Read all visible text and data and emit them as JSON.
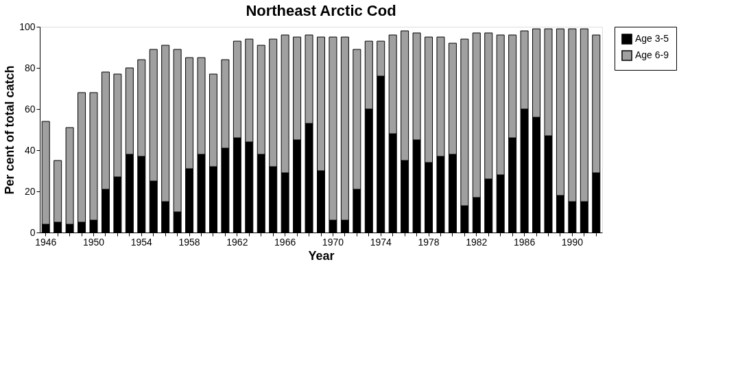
{
  "chart_data": {
    "type": "bar",
    "title": "Northeast Arctic Cod",
    "xlabel": "Year",
    "ylabel": "Per cent of total catch",
    "categories": [
      "1946",
      null,
      null,
      null,
      "1950",
      null,
      null,
      null,
      "1954",
      null,
      null,
      null,
      "1958",
      null,
      null,
      null,
      "1962",
      null,
      null,
      null,
      "1966",
      null,
      null,
      null,
      "1970",
      null,
      null,
      null,
      "1974",
      null,
      null,
      null,
      "1978",
      null,
      null,
      null,
      "1982",
      null,
      null,
      null,
      "1986",
      null,
      null,
      null,
      "1990",
      null,
      null
    ],
    "stacked": true,
    "series": [
      {
        "name": "Age 3-5",
        "color": "#000000",
        "values": [
          4,
          5,
          4,
          5,
          6,
          21,
          27,
          38,
          37,
          25,
          15,
          10,
          31,
          38,
          32,
          41,
          46,
          44,
          38,
          32,
          29,
          45,
          53,
          30,
          6,
          6,
          21,
          60,
          76,
          48,
          35,
          45,
          34,
          37,
          38,
          13,
          17,
          26,
          28,
          46,
          60,
          56,
          47,
          18,
          15,
          15,
          29
        ]
      },
      {
        "name": "Age 6-9",
        "color": "#a0a0a0",
        "values": [
          50,
          30,
          47,
          63,
          62,
          57,
          50,
          42,
          47,
          64,
          76,
          79,
          54,
          47,
          45,
          43,
          47,
          50,
          53,
          62,
          67,
          50,
          43,
          65,
          89,
          89,
          68,
          33,
          17,
          48,
          63,
          52,
          61,
          58,
          54,
          81,
          80,
          71,
          68,
          50,
          38,
          43,
          52,
          81,
          84,
          84,
          67
        ]
      }
    ],
    "ylim": [
      0,
      100
    ],
    "yticks": [
      0,
      20,
      40,
      60,
      80,
      100
    ],
    "grid": false,
    "legend": "right"
  }
}
